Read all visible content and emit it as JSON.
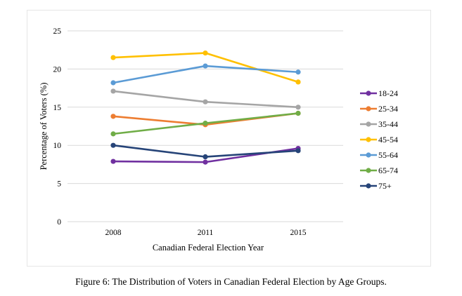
{
  "caption": "Figure 6: The Distribution of Voters in Canadian Federal Election by Age Groups.",
  "colors": {
    "18-24": "#7030a0",
    "25-34": "#ed7d31",
    "35-44": "#a5a5a5",
    "45-54": "#ffc000",
    "55-64": "#5b9bd5",
    "65-74": "#70ad47",
    "75+": "#264478",
    "grid": "#d9d9d9"
  },
  "chart_data": {
    "type": "line",
    "title": "",
    "xlabel": "Canadian Federal Election Year",
    "ylabel": "Percentage of Voters (%)",
    "categories": [
      "2008",
      "2011",
      "2015"
    ],
    "ylim": [
      0,
      25
    ],
    "yticks": [
      "0",
      "5",
      "10",
      "15",
      "20",
      "25"
    ],
    "grid": "horizontal",
    "legend_position": "right",
    "series": [
      {
        "name": "18-24",
        "values": [
          7.9,
          7.8,
          9.6
        ]
      },
      {
        "name": "25-34",
        "values": [
          13.8,
          12.7,
          14.2
        ]
      },
      {
        "name": "35-44",
        "values": [
          17.1,
          15.7,
          15.0
        ]
      },
      {
        "name": "45-54",
        "values": [
          21.5,
          22.1,
          18.3
        ]
      },
      {
        "name": "55-64",
        "values": [
          18.2,
          20.4,
          19.6
        ]
      },
      {
        "name": "65-74",
        "values": [
          11.5,
          12.9,
          14.2
        ]
      },
      {
        "name": "75+",
        "values": [
          10.0,
          8.5,
          9.3
        ]
      }
    ]
  }
}
